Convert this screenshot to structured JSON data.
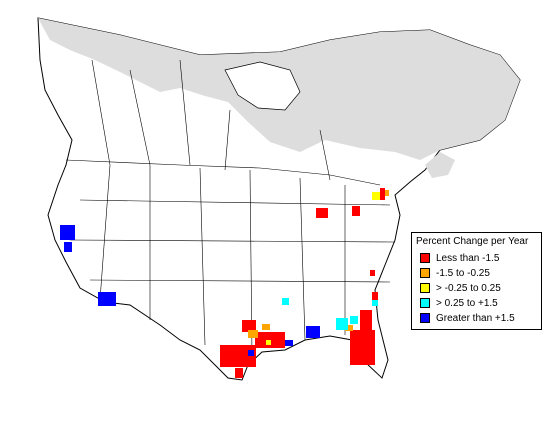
{
  "legend": {
    "title": "Percent Change per Year",
    "items": [
      {
        "label": "Less than -1.5",
        "color": "#ff0000"
      },
      {
        "label": "-1.5 to -0.25",
        "color": "#ffa500"
      },
      {
        "label": "> -0.25 to 0.25",
        "color": "#ffff00"
      },
      {
        "label": "> 0.25 to +1.5",
        "color": "#00ffff"
      },
      {
        "label": "Greater than +1.5",
        "color": "#0000ff"
      }
    ]
  },
  "colors": {
    "no_data_region": "#dddddd",
    "land": "#ffffff",
    "boundary": "#000000"
  }
}
